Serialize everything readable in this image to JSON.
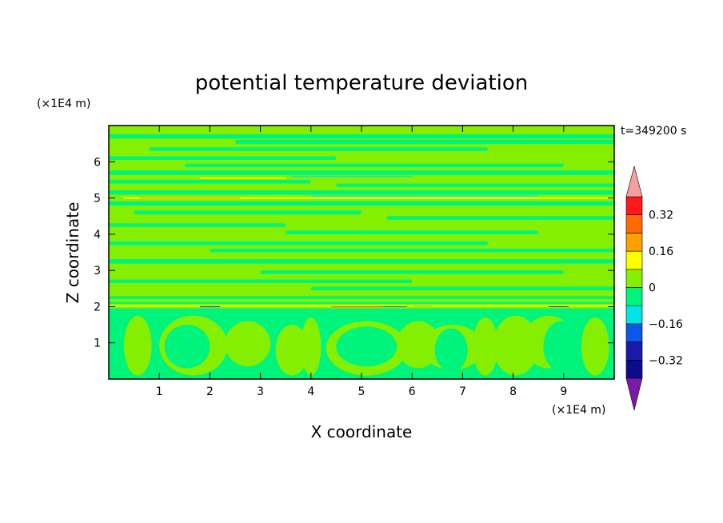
{
  "chart_data": {
    "type": "heatmap",
    "title": "potential temperature deviation",
    "time_label": "t=349200 s",
    "xlabel": "X coordinate",
    "ylabel": "Z coordinate",
    "x_unit": "(×1E4 m)",
    "y_unit": "(×1E4 m)",
    "xlim": [
      0,
      10
    ],
    "ylim": [
      0,
      7
    ],
    "x_ticks": [
      1,
      2,
      3,
      4,
      5,
      6,
      7,
      8,
      9
    ],
    "y_ticks": [
      1,
      2,
      3,
      4,
      5,
      6
    ],
    "colorbar": {
      "levels": [
        -0.4,
        -0.32,
        -0.24,
        -0.16,
        -0.08,
        0,
        0.08,
        0.16,
        0.24,
        0.32,
        0.4
      ],
      "colors": [
        "#0b0b8c",
        "#1a1aa8",
        "#0a58e8",
        "#00e5e5",
        "#00f47c",
        "#84ef00",
        "#ffff00",
        "#ffa000",
        "#ff6a00",
        "#ff1a1a"
      ],
      "under_color": "#7a1aa8",
      "over_color": "#f4a0a0",
      "tick_labels": [
        "0.32",
        "0.16",
        "0",
        "−0.16",
        "−0.32"
      ],
      "tick_values": [
        0.32,
        0.16,
        0,
        -0.16,
        -0.32
      ]
    },
    "dominant_field": "near-zero deviations (light green ~0..0.08 and green ~-0.08..0) with thin extreme bands near z≈2, z≈5 and z≈5.5",
    "extreme_bands": [
      {
        "z": 2.0,
        "min": -0.32,
        "max": 0.24
      },
      {
        "z": 5.0,
        "min": -0.16,
        "max": 0.16
      },
      {
        "z": 5.5,
        "min": -0.16,
        "max": 0.16
      }
    ]
  }
}
